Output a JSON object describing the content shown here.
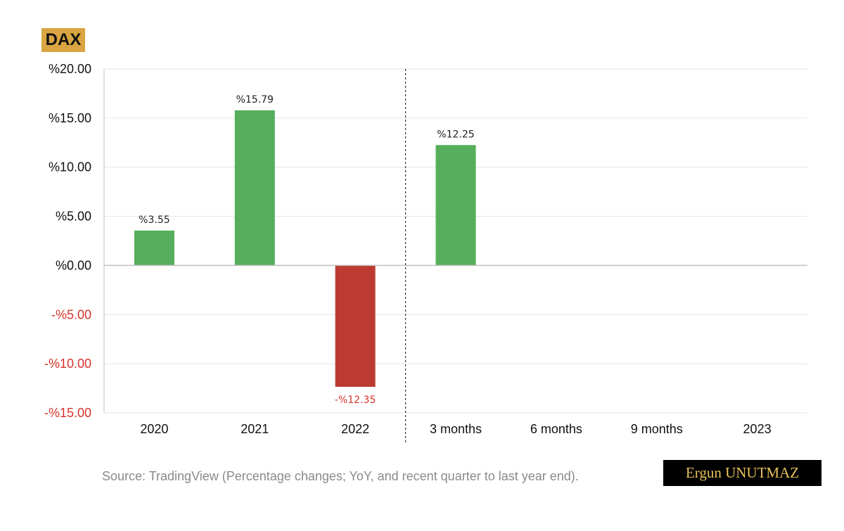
{
  "badge": "DAX",
  "source": "Source: TradingView (Percentage changes; YoY, and recent quarter to last year end).",
  "author": "Ergun UNUTMAZ",
  "colors": {
    "positive": "#55ae5b",
    "negative": "#bd3a32",
    "negative_tick": "#d8322b",
    "grid": "#e6e6e6",
    "axis": "#bfbfbf",
    "badge_bg": "#d9a441",
    "author_bg": "#000000",
    "author_text": "#e8c15a"
  },
  "chart_data": {
    "type": "bar",
    "categories": [
      "2020",
      "2021",
      "2022",
      "3 months",
      "6 months",
      "9 months",
      "2023"
    ],
    "values": [
      3.55,
      15.79,
      -12.35,
      12.25,
      null,
      null,
      null
    ],
    "data_labels": [
      "%3.55",
      "%15.79",
      "-%12.35",
      "%12.25",
      "",
      "",
      ""
    ],
    "y_ticks": [
      {
        "value": 20,
        "label": "%20.00"
      },
      {
        "value": 15,
        "label": "%15.00"
      },
      {
        "value": 10,
        "label": "%10.00"
      },
      {
        "value": 5,
        "label": "%5.00"
      },
      {
        "value": 0,
        "label": "%0.00"
      },
      {
        "value": -5,
        "label": "-%5.00"
      },
      {
        "value": -10,
        "label": "-%10.00"
      },
      {
        "value": -15,
        "label": "-%15.00"
      }
    ],
    "ylim": [
      -15,
      20
    ],
    "grid": true,
    "separator_after_category": 2,
    "title": "",
    "xlabel": "",
    "ylabel": ""
  }
}
